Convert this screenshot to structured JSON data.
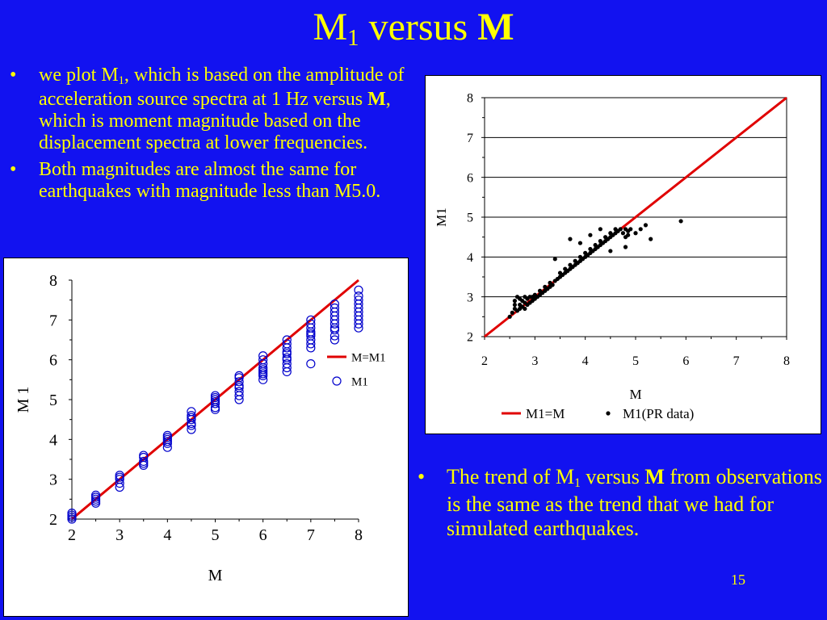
{
  "slide": {
    "title_main": "M",
    "title_sub": "1",
    "title_mid": " versus ",
    "title_bold": "M",
    "page_number": "15"
  },
  "bullets_top": [
    {
      "p1": "we plot M",
      "sub": "1",
      "p2": ", which is based on the amplitude of acceleration source spectra at 1 Hz versus ",
      "bold": "M",
      "p3": ", which is moment magnitude based on the displacement spectra at lower frequencies."
    },
    {
      "text": "Both magnitudes are almost the same for earthquakes with magnitude less than M5.0."
    }
  ],
  "bullet_bottom": {
    "p1": "The trend of M",
    "sub": "1",
    "p2": " versus ",
    "bold": "M",
    "p3": " from observations is the same as the trend that we had for simulated earthquakes."
  },
  "bullet_symbol": "•",
  "colors": {
    "background": "#1212f0",
    "text": "#ffff00",
    "line": "#e00000",
    "simulated_marker": "#0000cc",
    "observed_marker": "#000000"
  },
  "chart_data": [
    {
      "type": "scatter",
      "xlabel": "M",
      "ylabel": "M 1",
      "xlim": [
        2,
        8
      ],
      "ylim": [
        2,
        8
      ],
      "xticks": [
        "2",
        "3",
        "4",
        "5",
        "6",
        "7",
        "8"
      ],
      "yticks": [
        "2",
        "3",
        "4",
        "5",
        "6",
        "7",
        "8"
      ],
      "grid": false,
      "legend_position": "right",
      "series": [
        {
          "name": "M=M1",
          "kind": "line",
          "x": [
            2,
            8
          ],
          "y": [
            2,
            8
          ]
        },
        {
          "name": "M1",
          "kind": "open-circle",
          "x": [
            2.0,
            2.0,
            2.0,
            2.0,
            2.5,
            2.5,
            2.5,
            2.5,
            2.5,
            3.0,
            3.0,
            3.0,
            3.0,
            3.0,
            3.5,
            3.5,
            3.5,
            3.5,
            3.5,
            4.0,
            4.0,
            4.0,
            4.0,
            4.0,
            4.0,
            4.5,
            4.5,
            4.5,
            4.5,
            4.5,
            4.5,
            4.5,
            5.0,
            5.0,
            5.0,
            5.0,
            5.0,
            5.0,
            5.0,
            5.5,
            5.5,
            5.5,
            5.5,
            5.5,
            5.5,
            5.5,
            5.5,
            6.0,
            6.0,
            6.0,
            6.0,
            6.0,
            6.0,
            6.0,
            6.0,
            6.0,
            6.5,
            6.5,
            6.5,
            6.5,
            6.5,
            6.5,
            6.5,
            6.5,
            6.5,
            6.5,
            7.0,
            7.0,
            7.0,
            7.0,
            7.0,
            7.0,
            7.0,
            7.0,
            7.0,
            7.0,
            7.5,
            7.5,
            7.5,
            7.5,
            7.5,
            7.5,
            7.5,
            7.5,
            7.5,
            7.5,
            8.0,
            8.0,
            8.0,
            8.0,
            8.0,
            8.0,
            8.0,
            8.0,
            8.0,
            8.0
          ],
          "y": [
            2.0,
            2.05,
            2.1,
            2.15,
            2.4,
            2.45,
            2.5,
            2.55,
            2.6,
            2.8,
            2.9,
            3.0,
            3.05,
            3.1,
            3.35,
            3.4,
            3.45,
            3.55,
            3.6,
            3.8,
            3.9,
            3.95,
            4.0,
            4.05,
            4.1,
            4.25,
            4.35,
            4.4,
            4.5,
            4.55,
            4.6,
            4.7,
            4.75,
            4.8,
            4.9,
            4.95,
            5.0,
            5.05,
            5.1,
            5.0,
            5.1,
            5.2,
            5.3,
            5.35,
            5.45,
            5.55,
            5.6,
            5.5,
            5.6,
            5.65,
            5.7,
            5.75,
            5.8,
            5.9,
            6.0,
            6.1,
            5.7,
            5.8,
            5.9,
            6.0,
            6.05,
            6.15,
            6.2,
            6.3,
            6.4,
            6.5,
            5.9,
            6.3,
            6.4,
            6.5,
            6.6,
            6.65,
            6.7,
            6.8,
            6.9,
            7.0,
            6.5,
            6.6,
            6.75,
            6.8,
            6.9,
            7.0,
            7.1,
            7.2,
            7.3,
            7.4,
            6.8,
            6.9,
            7.0,
            7.1,
            7.2,
            7.3,
            7.4,
            7.5,
            7.6,
            7.75
          ]
        }
      ]
    },
    {
      "type": "scatter",
      "xlabel": "M",
      "ylabel": "M1",
      "xlim": [
        2,
        8
      ],
      "ylim": [
        2,
        8
      ],
      "xticks": [
        "2",
        "3",
        "4",
        "5",
        "6",
        "7",
        "8"
      ],
      "yticks": [
        "2",
        "3",
        "4",
        "5",
        "6",
        "7",
        "8"
      ],
      "grid": true,
      "legend_position": "bottom",
      "series": [
        {
          "name": "M1=M",
          "kind": "line",
          "x": [
            2,
            8
          ],
          "y": [
            2,
            8
          ]
        },
        {
          "name": "M1(PR data)",
          "kind": "dot",
          "x": [
            2.5,
            2.55,
            2.6,
            2.6,
            2.6,
            2.65,
            2.65,
            2.7,
            2.7,
            2.7,
            2.75,
            2.75,
            2.8,
            2.8,
            2.8,
            2.85,
            2.85,
            2.9,
            2.9,
            2.95,
            2.95,
            3.0,
            3.0,
            3.05,
            3.1,
            3.1,
            3.15,
            3.2,
            3.2,
            3.25,
            3.3,
            3.3,
            3.35,
            3.4,
            3.45,
            3.5,
            3.5,
            3.55,
            3.6,
            3.6,
            3.65,
            3.7,
            3.7,
            3.75,
            3.8,
            3.8,
            3.85,
            3.9,
            3.9,
            3.95,
            4.0,
            4.0,
            4.05,
            4.1,
            4.1,
            4.15,
            4.2,
            4.2,
            4.25,
            4.3,
            4.3,
            4.35,
            4.4,
            4.4,
            4.45,
            4.5,
            4.5,
            4.55,
            4.6,
            4.6,
            4.65,
            4.7,
            4.75,
            4.8,
            4.8,
            4.85,
            4.85,
            4.9,
            5.0,
            5.1,
            5.2,
            5.3,
            5.9,
            4.8,
            4.5,
            4.3,
            4.1,
            3.9,
            3.7,
            3.4
          ],
          "y": [
            2.5,
            2.6,
            2.7,
            2.8,
            2.9,
            2.65,
            3.0,
            2.7,
            2.8,
            2.95,
            2.75,
            2.9,
            2.7,
            2.85,
            3.0,
            2.8,
            2.95,
            2.85,
            3.0,
            2.9,
            3.0,
            2.95,
            3.05,
            3.0,
            3.05,
            3.15,
            3.1,
            3.15,
            3.25,
            3.2,
            3.25,
            3.35,
            3.3,
            3.4,
            3.45,
            3.5,
            3.6,
            3.55,
            3.6,
            3.7,
            3.65,
            3.7,
            3.8,
            3.75,
            3.8,
            3.9,
            3.85,
            3.9,
            4.0,
            3.95,
            4.0,
            4.1,
            4.05,
            4.1,
            4.2,
            4.15,
            4.2,
            4.3,
            4.25,
            4.3,
            4.4,
            4.35,
            4.4,
            4.5,
            4.45,
            4.5,
            4.6,
            4.55,
            4.6,
            4.7,
            4.65,
            4.7,
            4.6,
            4.7,
            4.5,
            4.65,
            4.55,
            4.7,
            4.6,
            4.7,
            4.8,
            4.45,
            4.9,
            4.25,
            4.15,
            4.7,
            4.55,
            4.35,
            4.45,
            3.95
          ]
        }
      ]
    }
  ]
}
